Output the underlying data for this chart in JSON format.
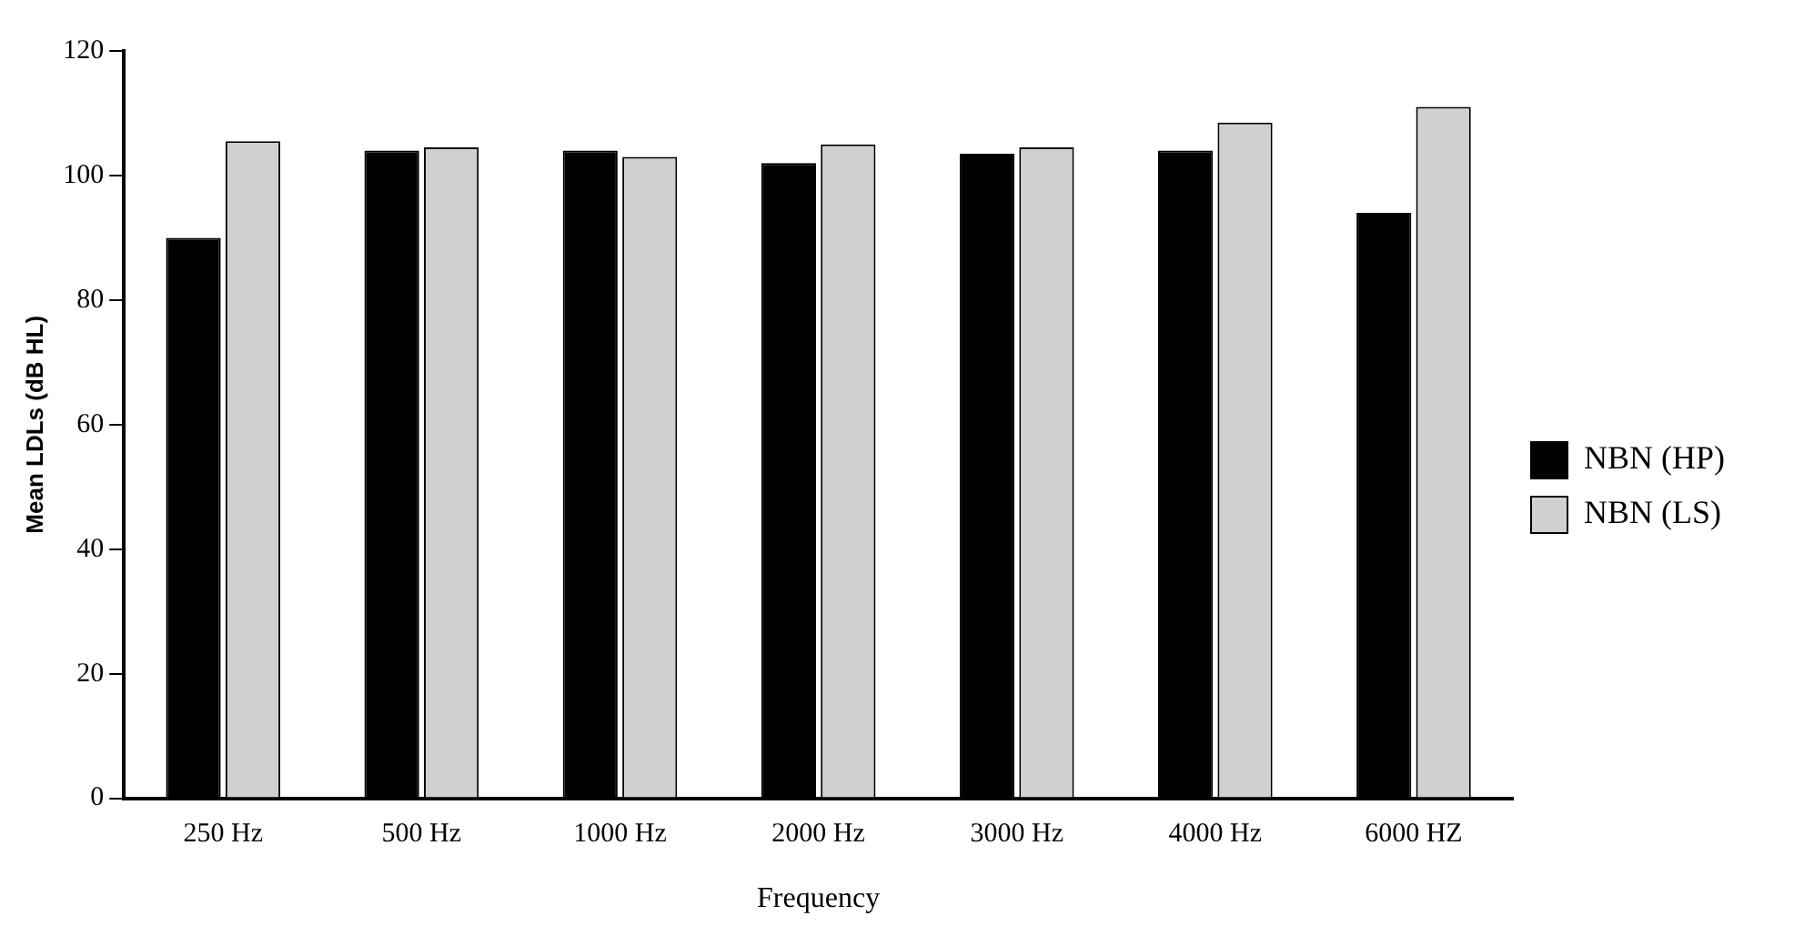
{
  "chart_data": {
    "type": "bar",
    "xlabel": "Frequency",
    "ylabel": "Mean LDLs (dB HL)",
    "categories": [
      "250 Hz",
      "500 Hz",
      "1000 Hz",
      "2000 Hz",
      "3000 Hz",
      "4000 Hz",
      "6000 HZ"
    ],
    "series": [
      {
        "name": "NBN (HP)",
        "color": "#000000",
        "values": [
          90,
          104,
          104,
          102,
          103.5,
          104,
          94
        ]
      },
      {
        "name": "NBN (LS)",
        "color": "#d0d0d0",
        "values": [
          105.5,
          104.5,
          103,
          105,
          104.5,
          108.5,
          111
        ]
      }
    ],
    "ylim": [
      0,
      120
    ],
    "yticks": [
      0,
      20,
      40,
      60,
      80,
      100,
      120
    ],
    "grid": false,
    "legend": "right"
  }
}
